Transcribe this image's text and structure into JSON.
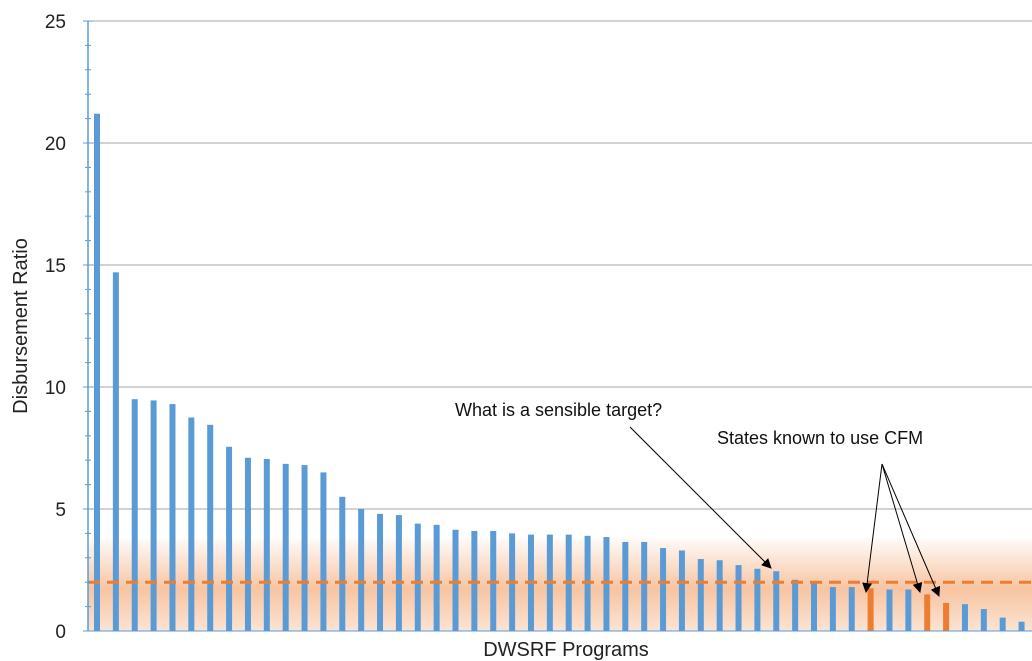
{
  "chart_data": {
    "type": "bar",
    "xlabel": "DWSRF Programs",
    "ylabel": "Disbursement Ratio",
    "ylim": [
      0,
      25
    ],
    "yticks": [
      0,
      5,
      10,
      15,
      20,
      25
    ],
    "grid": true,
    "values": [
      21.2,
      14.7,
      9.5,
      9.45,
      9.3,
      8.75,
      8.45,
      7.55,
      7.1,
      7.05,
      6.85,
      6.8,
      6.5,
      5.5,
      5.0,
      4.8,
      4.75,
      4.4,
      4.35,
      4.15,
      4.1,
      4.1,
      4.0,
      3.95,
      3.95,
      3.95,
      3.9,
      3.85,
      3.65,
      3.65,
      3.4,
      3.3,
      2.95,
      2.9,
      2.7,
      2.55,
      2.45,
      2.1,
      1.95,
      1.8,
      1.8,
      1.75,
      1.7,
      1.7,
      1.5,
      1.15,
      1.1,
      0.9,
      0.55,
      0.38
    ],
    "highlight_indices": [
      41,
      44,
      45
    ],
    "target_line": 2.0,
    "target_band": [
      0,
      3.8
    ],
    "colors": {
      "bar": "#5b9bd5",
      "highlight": "#ed7d31",
      "target": "#ed7d31",
      "band": "#f4b183",
      "grid": "#a6a6a6",
      "axis": "#5b9bd5"
    },
    "annotations": [
      {
        "text": "What is a sensible target?"
      },
      {
        "text": "States known to use CFM"
      }
    ]
  }
}
